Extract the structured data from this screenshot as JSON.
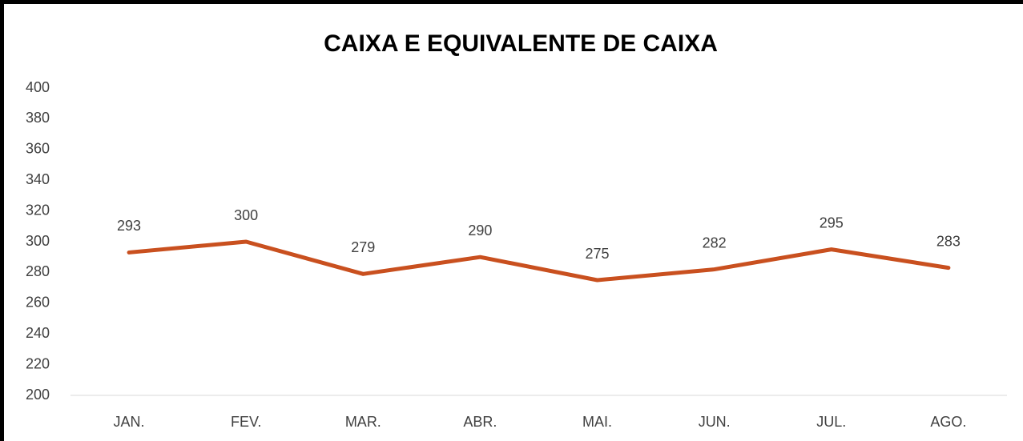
{
  "chart_data": {
    "type": "line",
    "title": "CAIXA E EQUIVALENTE DE CAIXA",
    "categories": [
      "JAN.",
      "FEV.",
      "MAR.",
      "ABR.",
      "MAI.",
      "JUN.",
      "JUL.",
      "AGO."
    ],
    "values": [
      293,
      300,
      279,
      290,
      275,
      282,
      295,
      283
    ],
    "color": "#c9501f",
    "ylim": [
      200,
      400
    ],
    "yticks": [
      200,
      220,
      240,
      260,
      280,
      300,
      320,
      340,
      360,
      380,
      400
    ],
    "grid": false
  }
}
